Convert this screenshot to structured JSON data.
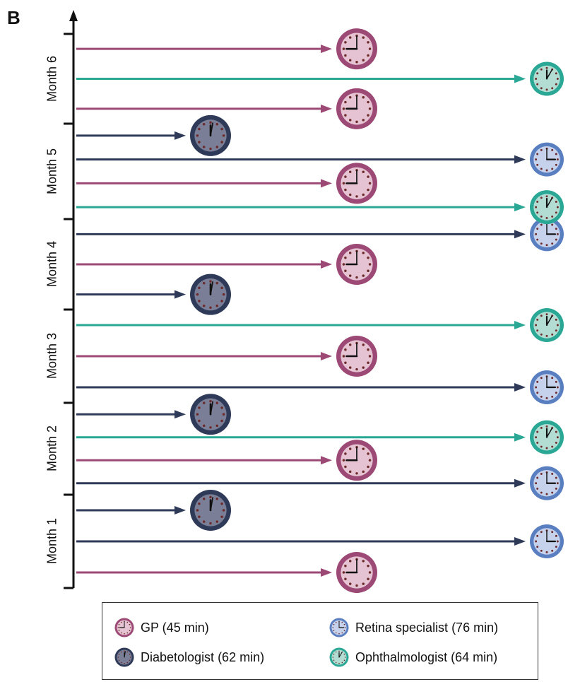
{
  "panel_letter": "B",
  "months": [
    "Month 1",
    "Month 2",
    "Month 3",
    "Month 4",
    "Month 5",
    "Month 6"
  ],
  "specialists": {
    "gp": {
      "label": "GP (45 min)",
      "color": "#9c4a75",
      "face": "#e6c3d2"
    },
    "diabetologist": {
      "label": "Diabetologist (62 min)",
      "color": "#2e3a57",
      "face": "#7a7f97"
    },
    "retina": {
      "label": "Retina specialist (76 min)",
      "color": "#5a7fc0",
      "face": "#c6d2ec"
    },
    "ophthalmologist": {
      "label": "Ophthalmologist (64 min)",
      "color": "#2aa795",
      "face": "#b3ddd3"
    }
  },
  "visits": [
    {
      "month": 1,
      "type": "gp"
    },
    {
      "month": 1,
      "type": "retina"
    },
    {
      "month": 1,
      "type": "diabetologist"
    },
    {
      "month": 2,
      "type": "retina"
    },
    {
      "month": 2,
      "type": "gp"
    },
    {
      "month": 2,
      "type": "ophthalmologist"
    },
    {
      "month": 2,
      "type": "diabetologist"
    },
    {
      "month": 3,
      "type": "retina"
    },
    {
      "month": 3,
      "type": "gp"
    },
    {
      "month": 3,
      "type": "ophthalmologist"
    },
    {
      "month": 4,
      "type": "diabetologist"
    },
    {
      "month": 4,
      "type": "gp"
    },
    {
      "month": 4,
      "type": "retina"
    },
    {
      "month": 5,
      "type": "ophthalmologist"
    },
    {
      "month": 5,
      "type": "gp"
    },
    {
      "month": 5,
      "type": "retina"
    },
    {
      "month": 5,
      "type": "diabetologist"
    },
    {
      "month": 6,
      "type": "gp"
    },
    {
      "month": 6,
      "type": "ophthalmologist"
    },
    {
      "month": 6,
      "type": "gp"
    }
  ]
}
